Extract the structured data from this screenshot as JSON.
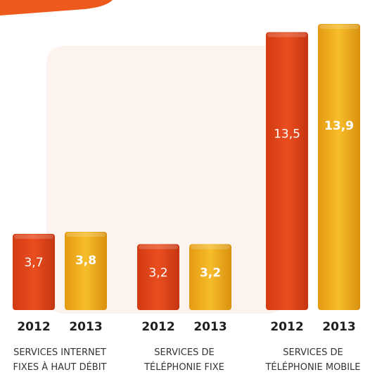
{
  "chart_data": {
    "type": "bar",
    "title": "",
    "xlabel": "",
    "ylabel": "",
    "ylim": [
      0,
      13.9
    ],
    "groups": [
      {
        "label_lines": [
          "SERVICES INTERNET",
          "FIXES À HAUT DÉBIT"
        ]
      },
      {
        "label_lines": [
          "SERVICES DE",
          "TÉLÉPHONIE FIXE"
        ]
      },
      {
        "label_lines": [
          "SERVICES DE",
          "TÉLÉPHONIE MOBILE"
        ]
      }
    ],
    "series": [
      {
        "name": "2012",
        "values": [
          3.7,
          3.2,
          13.5
        ],
        "value_labels": [
          "3,7",
          "3,2",
          "13,5"
        ],
        "color": "#e2461c"
      },
      {
        "name": "2013",
        "values": [
          3.8,
          3.2,
          13.9
        ],
        "value_labels": [
          "3,8",
          "3,2",
          "13,9"
        ],
        "color": "#f2b020"
      }
    ],
    "grid": false,
    "legend": "none"
  },
  "colors": {
    "accent_top": "#ee5a1c",
    "background_panel": "#fdf3ee",
    "red_bar": "#e2461c",
    "yellow_bar": "#f2b020",
    "year_label": "#1f1f1f",
    "category_label": "#333333"
  }
}
